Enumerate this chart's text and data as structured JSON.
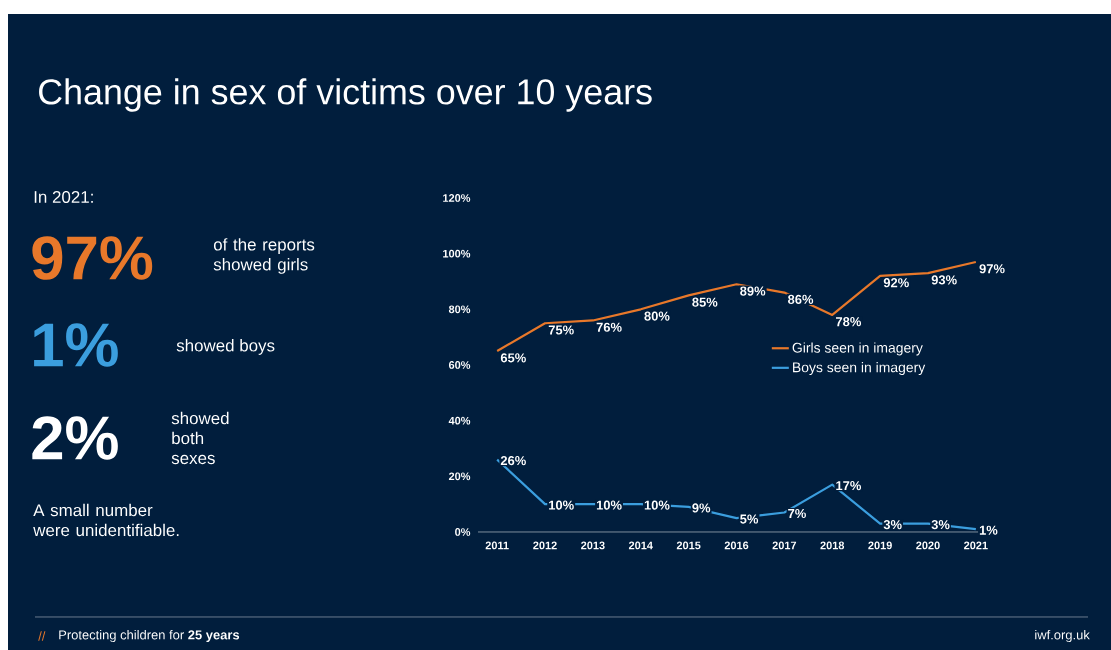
{
  "chart_data": [
    {
      "type": "other",
      "title": "Change in sex of victims over 10 years",
      "annotations": [
        "In 2021:",
        "97%",
        "of the reports showed girls",
        "1%",
        "showed boys",
        "2%",
        "showed both sexes",
        "A small number were unidentifiable."
      ]
    },
    {
      "type": "line",
      "categories": [
        "2011",
        "2012",
        "2013",
        "2014",
        "2015",
        "2016",
        "2017",
        "2018",
        "2019",
        "2020",
        "2021"
      ],
      "series": [
        {
          "name": "Girls seen in imagery",
          "color": "#e8782a",
          "values": [
            65,
            75,
            76,
            80,
            85,
            89,
            86,
            78,
            92,
            93,
            97
          ],
          "value_labels": [
            "65%",
            "75%",
            "76%",
            "80%",
            "85%",
            "89%",
            "86%",
            "78%",
            "92%",
            "93%",
            "97%"
          ]
        },
        {
          "name": "Boys seen in imagery",
          "color": "#3b9ede",
          "values": [
            26,
            10,
            10,
            10,
            9,
            5,
            7,
            17,
            3,
            3,
            1
          ],
          "value_labels": [
            "26%",
            "10%",
            "10%",
            "10%",
            "9%",
            "5%",
            "7%",
            "17%",
            "3%",
            "3%",
            "1%"
          ]
        }
      ],
      "ylim": [
        0,
        120
      ],
      "yticks": [
        {
          "value": 0,
          "label": "0%"
        },
        {
          "value": 20,
          "label": "20%"
        },
        {
          "value": 40,
          "label": "40%"
        },
        {
          "value": 60,
          "label": "60%"
        },
        {
          "value": 80,
          "label": "80%"
        },
        {
          "value": 100,
          "label": "100%"
        },
        {
          "value": 120,
          "label": "120%"
        }
      ],
      "legend": "right",
      "marker": "none",
      "line_style": "solid",
      "annotations": [
        "//",
        "Protecting children for **25 years**",
        "iwf.org.uk"
      ]
    }
  ]
}
